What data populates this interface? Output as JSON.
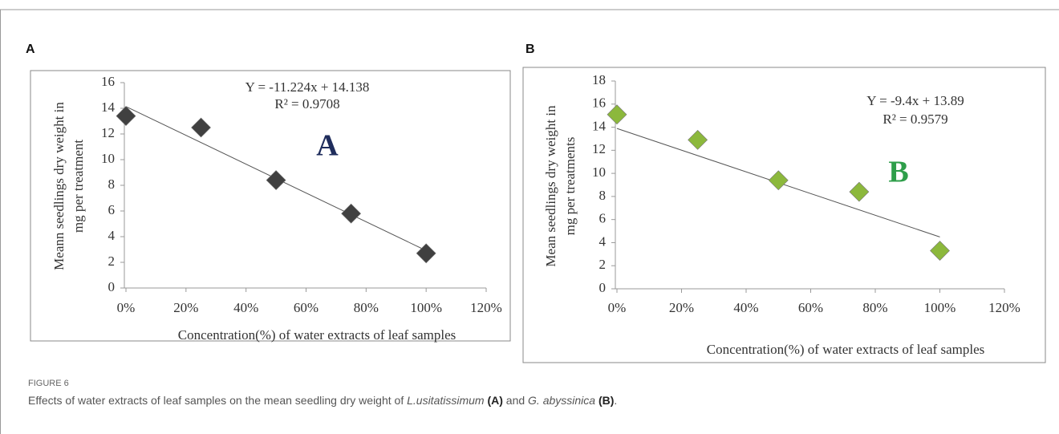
{
  "figure": {
    "panel_labels": [
      "A",
      "B"
    ],
    "caption": {
      "label": "FIGURE 6",
      "parts": [
        {
          "text": "Effects of water extracts of leaf samples on the mean seedling dry weight of ",
          "style": "normal"
        },
        {
          "text": "L.usitatissimum",
          "style": "italic"
        },
        {
          "text": " ",
          "style": "normal"
        },
        {
          "text": "(A)",
          "style": "bold"
        },
        {
          "text": " and ",
          "style": "normal"
        },
        {
          "text": "G. abyssinica",
          "style": "italic"
        },
        {
          "text": " ",
          "style": "normal"
        },
        {
          "text": "(B)",
          "style": "bold"
        },
        {
          "text": ".",
          "style": "normal"
        }
      ]
    }
  },
  "chart_data": [
    {
      "type": "scatter",
      "color": "#404040",
      "x": [
        0,
        0.25,
        0.5,
        0.75,
        1
      ],
      "y": [
        13.4,
        12.5,
        8.4,
        5.8,
        2.7
      ],
      "xlim": [
        0,
        1.2
      ],
      "xticks": [
        {
          "value": 0,
          "label": "0%"
        },
        {
          "value": 0.2,
          "label": "20%"
        },
        {
          "value": 0.4,
          "label": "40%"
        },
        {
          "value": 0.6,
          "label": "60%"
        },
        {
          "value": 0.8,
          "label": "80%"
        },
        {
          "value": 1,
          "label": "100%"
        },
        {
          "value": 1.2,
          "label": "120%"
        }
      ],
      "ylim": [
        0,
        16
      ],
      "yticks": [
        0,
        2,
        4,
        6,
        8,
        10,
        12,
        14,
        16
      ],
      "xlabel": "Concentration(%)  of water extracts of leaf samples",
      "ylabel": [
        "Meann seedlings  dry weight  in",
        "mg  per treatment"
      ],
      "trendline": {
        "label": "Y = -11.224x + 14.138",
        "slope": -11.224,
        "intercept": 14.138,
        "r2_label": "R² = 0.9708",
        "r2": 0.9708
      },
      "annotation": {
        "text": "A",
        "color": "#1f2d5c"
      }
    },
    {
      "type": "scatter",
      "color": "#8cb83c",
      "x": [
        0,
        0.25,
        0.5,
        0.75,
        1
      ],
      "y": [
        15.1,
        12.9,
        9.4,
        8.4,
        3.3
      ],
      "xlim": [
        0,
        1.2
      ],
      "xticks": [
        {
          "value": 0,
          "label": "0%"
        },
        {
          "value": 0.2,
          "label": "20%"
        },
        {
          "value": 0.4,
          "label": "40%"
        },
        {
          "value": 0.6,
          "label": "60%"
        },
        {
          "value": 0.8,
          "label": "80%"
        },
        {
          "value": 1,
          "label": "100%"
        },
        {
          "value": 1.2,
          "label": "120%"
        }
      ],
      "ylim": [
        0,
        18
      ],
      "yticks": [
        0,
        2,
        4,
        6,
        8,
        10,
        12,
        14,
        16,
        18
      ],
      "xlabel": "Concentration(%)  of water extracts of leaf samples",
      "ylabel": [
        "Mean seedlings  dry weight  in",
        "mg  per treatments"
      ],
      "trendline": {
        "label": "Y = -9.4x + 13.89",
        "slope": -9.4,
        "intercept": 13.89,
        "r2_label": "R² = 0.9579",
        "r2": 0.9579
      },
      "annotation": {
        "text": "B",
        "color": "#2e9e4a"
      }
    }
  ]
}
